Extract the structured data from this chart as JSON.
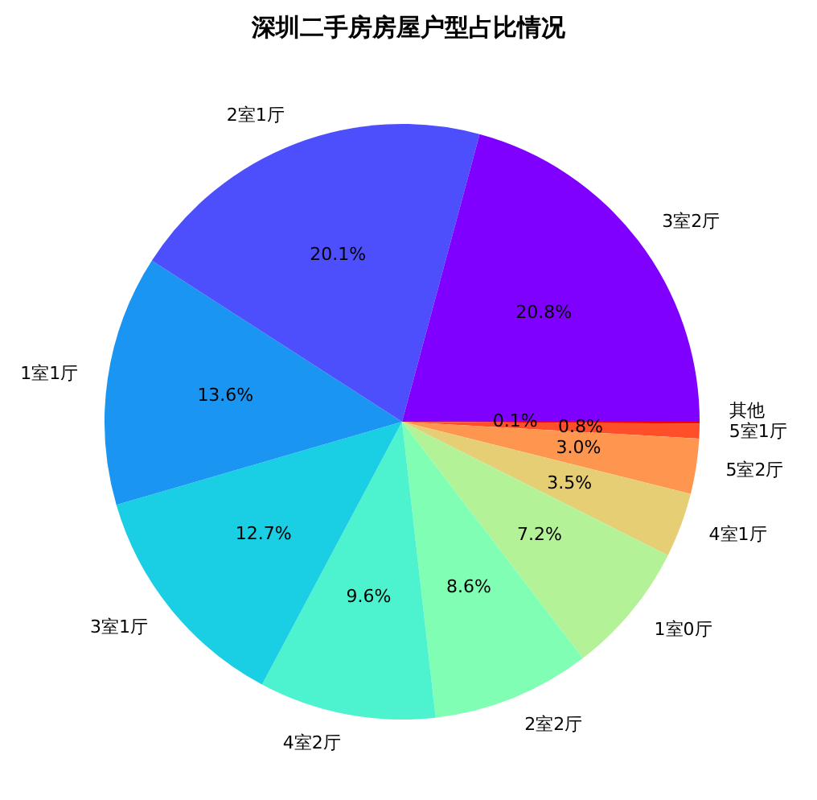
{
  "chart_data": {
    "type": "pie",
    "title": "深圳二手房房屋户型占比情况",
    "categories": [
      "3室2厅",
      "2室1厅",
      "1室1厅",
      "3室1厅",
      "4室2厅",
      "2室2厅",
      "1室0厅",
      "4室1厅",
      "5室2厅",
      "5室1厅",
      "其他"
    ],
    "values": [
      20.8,
      20.1,
      13.6,
      12.7,
      9.6,
      8.6,
      7.2,
      3.5,
      3.0,
      0.8,
      0.1
    ],
    "colors": [
      "#8000ff",
      "#4d4ffc",
      "#1a96f2",
      "#1acee3",
      "#4df2ce",
      "#80ffb4",
      "#b3f296",
      "#e6ce74",
      "#ff964f",
      "#ff4f28",
      "#ff0000"
    ],
    "value_labels": [
      "20.8%",
      "20.1%",
      "13.6%",
      "12.7%",
      "9.6%",
      "8.6%",
      "7.2%",
      "3.5%",
      "3.0%",
      "0.8%",
      "0.1%"
    ]
  }
}
